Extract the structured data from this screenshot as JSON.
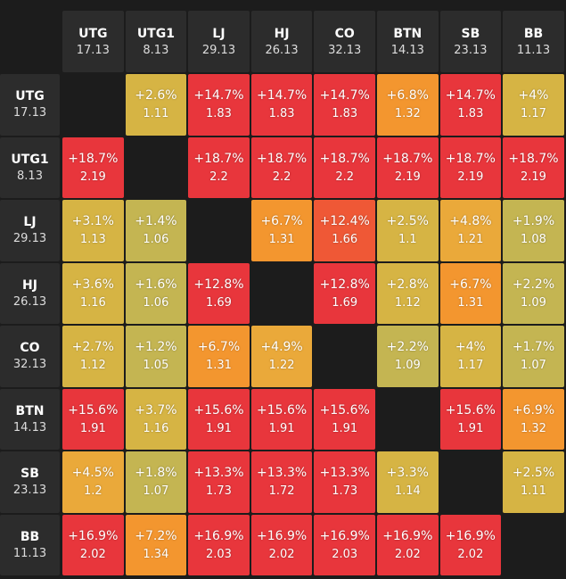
{
  "table": {
    "columns": [
      {
        "name": "UTG",
        "value": 17.13
      },
      {
        "name": "UTG1",
        "value": 8.13
      },
      {
        "name": "LJ",
        "value": 29.13
      },
      {
        "name": "HJ",
        "value": 26.13
      },
      {
        "name": "CO",
        "value": 32.13
      },
      {
        "name": "BTN",
        "value": 14.13
      },
      {
        "name": "SB",
        "value": 23.13
      },
      {
        "name": "BB",
        "value": 11.13
      }
    ],
    "rows": [
      {
        "name": "UTG",
        "value": 17.13,
        "cells": [
          null,
          [
            "+2.6%",
            1.11
          ],
          [
            "+14.7%",
            1.83
          ],
          [
            "+14.7%",
            1.83
          ],
          [
            "+14.7%",
            1.83
          ],
          [
            "+6.8%",
            1.32
          ],
          [
            "+14.7%",
            1.83
          ],
          [
            "+4%",
            1.17
          ]
        ]
      },
      {
        "name": "UTG1",
        "value": 8.13,
        "cells": [
          [
            "+18.7%",
            2.19
          ],
          null,
          [
            "+18.7%",
            2.2
          ],
          [
            "+18.7%",
            2.2
          ],
          [
            "+18.7%",
            2.2
          ],
          [
            "+18.7%",
            2.19
          ],
          [
            "+18.7%",
            2.19
          ],
          [
            "+18.7%",
            2.19
          ]
        ]
      },
      {
        "name": "LJ",
        "value": 29.13,
        "cells": [
          [
            "+3.1%",
            1.13
          ],
          [
            "+1.4%",
            1.06
          ],
          null,
          [
            "+6.7%",
            1.31
          ],
          [
            "+12.4%",
            1.66
          ],
          [
            "+2.5%",
            1.1
          ],
          [
            "+4.8%",
            1.21
          ],
          [
            "+1.9%",
            1.08
          ]
        ]
      },
      {
        "name": "HJ",
        "value": 26.13,
        "cells": [
          [
            "+3.6%",
            1.16
          ],
          [
            "+1.6%",
            1.06
          ],
          [
            "+12.8%",
            1.69
          ],
          null,
          [
            "+12.8%",
            1.69
          ],
          [
            "+2.8%",
            1.12
          ],
          [
            "+6.7%",
            1.31
          ],
          [
            "+2.2%",
            1.09
          ]
        ]
      },
      {
        "name": "CO",
        "value": 32.13,
        "cells": [
          [
            "+2.7%",
            1.12
          ],
          [
            "+1.2%",
            1.05
          ],
          [
            "+6.7%",
            1.31
          ],
          [
            "+4.9%",
            1.22
          ],
          null,
          [
            "+2.2%",
            1.09
          ],
          [
            "+4%",
            1.17
          ],
          [
            "+1.7%",
            1.07
          ]
        ]
      },
      {
        "name": "BTN",
        "value": 14.13,
        "cells": [
          [
            "+15.6%",
            1.91
          ],
          [
            "+3.7%",
            1.16
          ],
          [
            "+15.6%",
            1.91
          ],
          [
            "+15.6%",
            1.91
          ],
          [
            "+15.6%",
            1.91
          ],
          null,
          [
            "+15.6%",
            1.91
          ],
          [
            "+6.9%",
            1.32
          ]
        ]
      },
      {
        "name": "SB",
        "value": 23.13,
        "cells": [
          [
            "+4.5%",
            1.2
          ],
          [
            "+1.8%",
            1.07
          ],
          [
            "+13.3%",
            1.73
          ],
          [
            "+13.3%",
            1.72
          ],
          [
            "+13.3%",
            1.73
          ],
          [
            "+3.3%",
            1.14
          ],
          null,
          [
            "+2.5%",
            1.11
          ]
        ]
      },
      {
        "name": "BB",
        "value": 11.13,
        "cells": [
          [
            "+16.9%",
            2.02
          ],
          [
            "+7.2%",
            1.34
          ],
          [
            "+16.9%",
            2.03
          ],
          [
            "+16.9%",
            2.02
          ],
          [
            "+16.9%",
            2.03
          ],
          [
            "+16.9%",
            2.02
          ],
          [
            "+16.9%",
            2.02
          ],
          null
        ]
      }
    ]
  }
}
